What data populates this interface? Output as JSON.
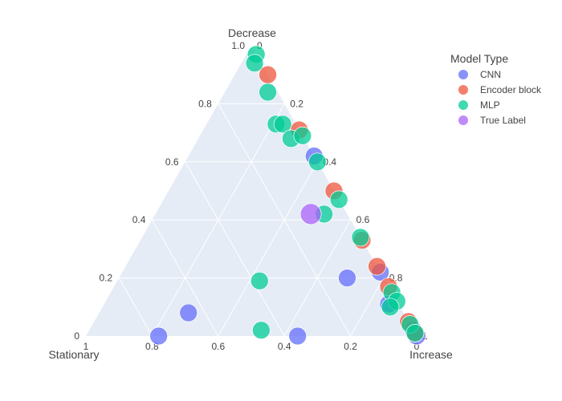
{
  "chart_data": {
    "type": "scatter",
    "subtype": "ternary",
    "axes": {
      "a": {
        "title": "Decrease",
        "range": [
          0,
          1
        ]
      },
      "b": {
        "title": "Stationary",
        "range": [
          0,
          1
        ]
      },
      "c": {
        "title": "Increase",
        "range": [
          0,
          1
        ]
      }
    },
    "ticks": [
      "0",
      "0.2",
      "0.4",
      "0.6",
      "0.8",
      "1",
      "1.0"
    ],
    "grid": true,
    "plot_background": "#e5ecf6",
    "legend": {
      "title": "Model Type",
      "placement": "top-right"
    },
    "series": [
      {
        "name": "CNN",
        "color": "#636efa",
        "points": [
          {
            "a": 0.62,
            "b": 0.0,
            "c": 0.38
          },
          {
            "a": 0.22,
            "b": 0.0,
            "c": 0.78
          },
          {
            "a": 0.2,
            "b": 0.11,
            "c": 0.69
          },
          {
            "a": 0.02,
            "b": 0.0,
            "c": 0.98
          },
          {
            "a": 0.0,
            "b": 0.0,
            "c": 1.0
          },
          {
            "a": 0.08,
            "b": 0.65,
            "c": 0.27
          },
          {
            "a": 0.0,
            "b": 0.78,
            "c": 0.22
          },
          {
            "a": 0.0,
            "b": 0.36,
            "c": 0.64
          },
          {
            "a": 0.11,
            "b": 0.03,
            "c": 0.86
          }
        ]
      },
      {
        "name": "Encoder block",
        "color": "#ef553b",
        "points": [
          {
            "a": 0.9,
            "b": 0.0,
            "c": 0.1
          },
          {
            "a": 0.71,
            "b": 0.0,
            "c": 0.29
          },
          {
            "a": 0.5,
            "b": 0.0,
            "c": 0.5
          },
          {
            "a": 0.33,
            "b": 0.0,
            "c": 0.67
          },
          {
            "a": 0.24,
            "b": 0.0,
            "c": 0.76
          },
          {
            "a": 0.17,
            "b": 0.0,
            "c": 0.83
          },
          {
            "a": 0.05,
            "b": 0.0,
            "c": 0.95
          },
          {
            "a": 0.01,
            "b": 0.0,
            "c": 0.99
          }
        ]
      },
      {
        "name": "MLP",
        "color": "#00cc96",
        "points": [
          {
            "a": 0.97,
            "b": 0.0,
            "c": 0.03
          },
          {
            "a": 0.94,
            "b": 0.02,
            "c": 0.04
          },
          {
            "a": 0.84,
            "b": 0.03,
            "c": 0.13
          },
          {
            "a": 0.73,
            "b": 0.06,
            "c": 0.21
          },
          {
            "a": 0.73,
            "b": 0.04,
            "c": 0.23
          },
          {
            "a": 0.68,
            "b": 0.04,
            "c": 0.28
          },
          {
            "a": 0.69,
            "b": 0.0,
            "c": 0.31
          },
          {
            "a": 0.6,
            "b": 0.0,
            "c": 0.4
          },
          {
            "a": 0.47,
            "b": 0.0,
            "c": 0.53
          },
          {
            "a": 0.42,
            "b": 0.07,
            "c": 0.51
          },
          {
            "a": 0.34,
            "b": 0.0,
            "c": 0.66
          },
          {
            "a": 0.19,
            "b": 0.38,
            "c": 0.43
          },
          {
            "a": 0.02,
            "b": 0.46,
            "c": 0.52
          },
          {
            "a": 0.15,
            "b": 0.0,
            "c": 0.85
          },
          {
            "a": 0.12,
            "b": 0.0,
            "c": 0.88
          },
          {
            "a": 0.1,
            "b": 0.03,
            "c": 0.87
          },
          {
            "a": 0.04,
            "b": 0.0,
            "c": 0.96
          },
          {
            "a": 0.01,
            "b": 0.0,
            "c": 0.99
          }
        ]
      },
      {
        "name": "True Label",
        "color": "#ab63fa",
        "points": [
          {
            "a": 0.42,
            "b": 0.11,
            "c": 0.47
          }
        ]
      }
    ]
  }
}
